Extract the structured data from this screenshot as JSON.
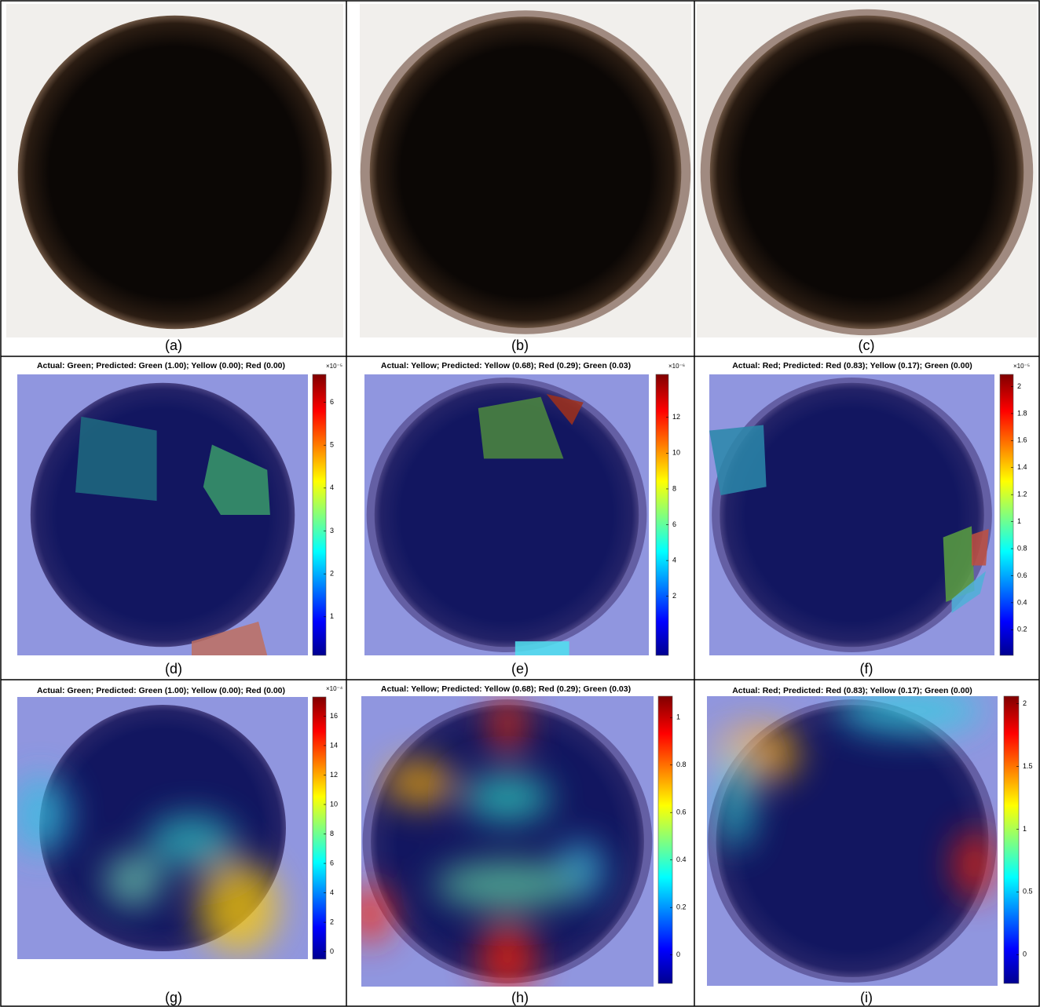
{
  "panels": [
    {
      "label": "(a)"
    },
    {
      "label": "(b)"
    },
    {
      "label": "(c)"
    },
    {
      "label": "(d)",
      "title": "Actual: Green; Predicted: Green (1.00); Yellow (0.00); Red (0.00)",
      "colorbar": {
        "exponent": "×10⁻⁵",
        "lim": [
          0.1,
          6.65
        ],
        "ticks": [
          1,
          2,
          3,
          4,
          5,
          6
        ]
      }
    },
    {
      "label": "(e)",
      "title": "Actual: Yellow; Predicted: Yellow (0.68); Red (0.29); Green (0.03)",
      "colorbar": {
        "exponent": "×10⁻⁶",
        "lim": [
          -1.3,
          14.4
        ],
        "ticks": [
          2,
          4,
          6,
          8,
          10,
          12
        ]
      }
    },
    {
      "label": "(f)",
      "title": "Actual: Red; Predicted: Red (0.83); Yellow (0.17); Green (0.00)",
      "colorbar": {
        "exponent": "×10⁻⁵",
        "lim": [
          0.01,
          2.09
        ],
        "ticks": [
          0.2,
          0.4,
          0.6,
          0.8,
          1,
          1.2,
          1.4,
          1.6,
          1.8,
          2
        ]
      }
    },
    {
      "label": "(g)",
      "title": "Actual: Green; Predicted: Green (1.00); Yellow (0.00); Red (0.00)",
      "colorbar": {
        "exponent": "×10⁻⁴",
        "lim": [
          -0.5,
          17.3
        ],
        "ticks": [
          0,
          2,
          4,
          6,
          8,
          10,
          12,
          14,
          16
        ]
      }
    },
    {
      "label": "(h)",
      "title": "Actual: Yellow; Predicted: Yellow (0.68); Red (0.29); Green (0.03)",
      "colorbar": {
        "lim": [
          -0.12,
          1.09
        ],
        "ticks": [
          0,
          0.2,
          0.4,
          0.6,
          0.8,
          1
        ]
      }
    },
    {
      "label": "(i)",
      "title": "Actual: Red; Predicted: Red (0.83); Yellow (0.17); Green (0.00)",
      "colorbar": {
        "lim": [
          -0.23,
          2.06
        ],
        "ticks": [
          0,
          0.5,
          1,
          1.5,
          2
        ]
      }
    }
  ]
}
